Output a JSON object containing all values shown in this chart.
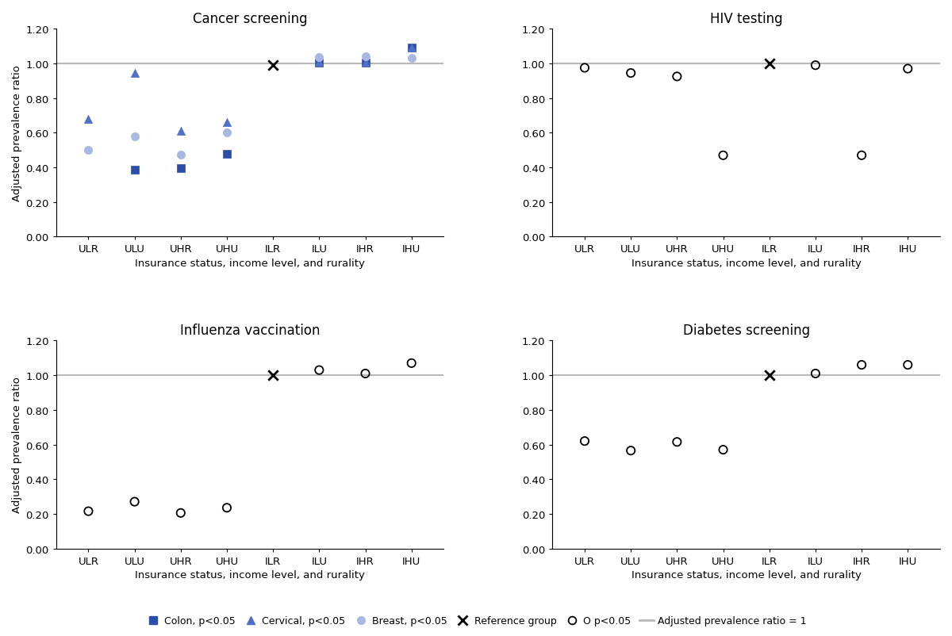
{
  "categories": [
    "ULR",
    "ULU",
    "UHR",
    "UHU",
    "ILR",
    "ILU",
    "IHR",
    "IHU"
  ],
  "panels": [
    {
      "title": "Cancer screening",
      "series": [
        {
          "name": "Colon",
          "marker": "s",
          "color": "#2b4ea8",
          "facecolor": "#2b4ea8",
          "values": [
            null,
            0.385,
            0.395,
            0.48,
            null,
            1.005,
            1.005,
            1.09
          ]
        },
        {
          "name": "Cervical",
          "marker": "^",
          "color": "#5070c8",
          "facecolor": "#5070c8",
          "values": [
            0.68,
            0.945,
            0.61,
            0.66,
            null,
            1.01,
            1.005,
            1.09
          ]
        },
        {
          "name": "Breast",
          "marker": "o",
          "color": "#a8b8e0",
          "facecolor": "#a8b8e0",
          "values": [
            0.5,
            0.58,
            0.475,
            0.6,
            null,
            1.035,
            1.04,
            1.03
          ]
        },
        {
          "name": "Reference",
          "marker": "x",
          "color": "#000000",
          "facecolor": "none",
          "values": [
            null,
            null,
            null,
            null,
            0.99,
            null,
            null,
            null
          ]
        }
      ]
    },
    {
      "title": "HIV testing",
      "series": [
        {
          "name": "circle_high",
          "marker": "o",
          "color": "#000000",
          "facecolor": "none",
          "values": [
            0.975,
            0.945,
            0.925,
            null,
            null,
            0.99,
            null,
            0.97
          ]
        },
        {
          "name": "Reference",
          "marker": "x",
          "color": "#000000",
          "facecolor": "none",
          "values": [
            null,
            null,
            null,
            null,
            1.0,
            null,
            null,
            null
          ]
        },
        {
          "name": "circle_low",
          "marker": "o",
          "color": "#000000",
          "facecolor": "none",
          "values": [
            null,
            null,
            null,
            0.47,
            null,
            null,
            0.47,
            null
          ]
        }
      ]
    },
    {
      "title": "Influenza vaccination",
      "series": [
        {
          "name": "circle_p",
          "marker": "o",
          "color": "#000000",
          "facecolor": "none",
          "values": [
            0.215,
            0.27,
            0.205,
            0.235,
            null,
            1.03,
            1.01,
            1.07
          ]
        },
        {
          "name": "Reference",
          "marker": "x",
          "color": "#000000",
          "facecolor": "none",
          "values": [
            null,
            null,
            null,
            null,
            1.0,
            null,
            null,
            null
          ]
        }
      ]
    },
    {
      "title": "Diabetes screening",
      "series": [
        {
          "name": "circle_p",
          "marker": "o",
          "color": "#000000",
          "facecolor": "none",
          "values": [
            0.62,
            0.565,
            0.615,
            0.57,
            null,
            1.01,
            1.06,
            1.06
          ]
        },
        {
          "name": "Reference",
          "marker": "x",
          "color": "#000000",
          "facecolor": "none",
          "values": [
            null,
            null,
            null,
            null,
            1.0,
            null,
            null,
            null
          ]
        }
      ]
    }
  ],
  "ylabel": "Adjusted prevalence ratio",
  "xlabel": "Insurance status, income level, and rurality",
  "ylim": [
    0.0,
    1.2
  ],
  "yticks": [
    0.0,
    0.2,
    0.4,
    0.6,
    0.8,
    1.0,
    1.2
  ],
  "ref_line_y": 1.0,
  "ref_line_color": "#b8b8b8",
  "background_color": "#ffffff",
  "title_fontsize": 12,
  "label_fontsize": 9.5,
  "tick_fontsize": 9.5,
  "marker_size": 55,
  "ref_marker_size": 80
}
